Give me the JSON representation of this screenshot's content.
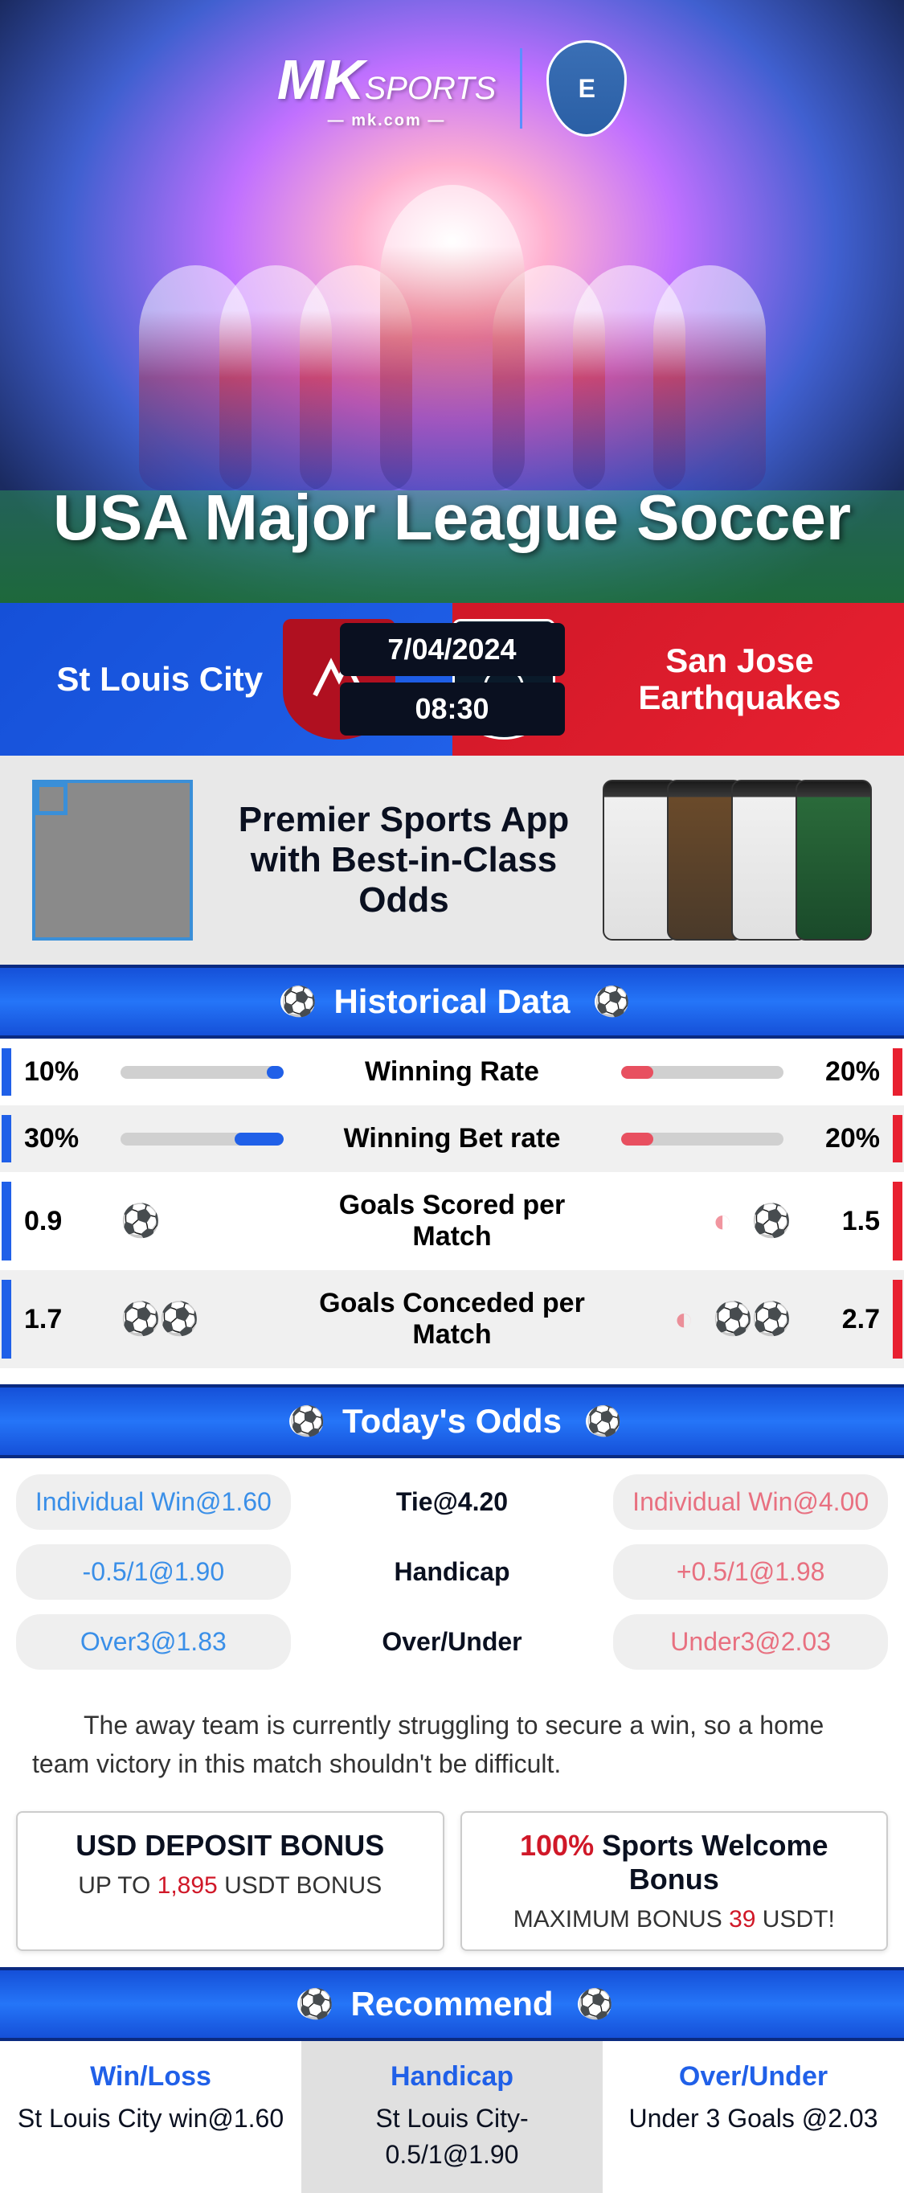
{
  "brand": {
    "logo_main": "MK",
    "logo_sub": "SPORTS",
    "logo_domain": "mk.com",
    "partner_badge": "E"
  },
  "hero": {
    "title": "USA Major League Soccer"
  },
  "match": {
    "home_team": "St Louis City",
    "away_team": "San Jose Earthquakes",
    "date": "7/04/2024",
    "time": "08:30"
  },
  "app_promo": {
    "line1": "Premier Sports App",
    "line2": "with Best-in-Class Odds"
  },
  "sections": {
    "historical": "Historical Data",
    "odds": "Today's Odds",
    "recommend": "Recommend"
  },
  "historical": {
    "rows": [
      {
        "label": "Winning Rate",
        "home_val": "10%",
        "away_val": "20%",
        "home_pct": 10,
        "away_pct": 20,
        "type": "bar"
      },
      {
        "label": "Winning Bet rate",
        "home_val": "30%",
        "away_val": "20%",
        "home_pct": 30,
        "away_pct": 20,
        "type": "bar"
      },
      {
        "label": "Goals Scored per Match",
        "home_val": "0.9",
        "away_val": "1.5",
        "home_balls": 1,
        "home_half": false,
        "away_balls": 1,
        "away_half": true,
        "type": "balls"
      },
      {
        "label": "Goals Conceded per Match",
        "home_val": "1.7",
        "away_val": "2.7",
        "home_balls": 2,
        "home_half": false,
        "away_balls": 2,
        "away_half": true,
        "type": "balls"
      }
    ]
  },
  "odds": {
    "rows": [
      {
        "home": "Individual Win@1.60",
        "center": "Tie@4.20",
        "away": "Individual Win@4.00"
      },
      {
        "home": "-0.5/1@1.90",
        "center": "Handicap",
        "away": "+0.5/1@1.98"
      },
      {
        "home": "Over3@1.83",
        "center": "Over/Under",
        "away": "Under3@2.03"
      }
    ]
  },
  "analysis": "The away team is currently struggling to secure a win, so a home team victory in this match shouldn't be difficult.",
  "bonus": {
    "card1_title": "USD DEPOSIT BONUS",
    "card1_sub_pre": "UP TO ",
    "card1_sub_highlight": "1,895",
    "card1_sub_post": " USDT BONUS",
    "card2_title_highlight": "100%",
    "card2_title_post": " Sports Welcome Bonus",
    "card2_sub_pre": "MAXIMUM BONUS ",
    "card2_sub_highlight": "39",
    "card2_sub_post": " USDT!"
  },
  "recommend": {
    "cols": [
      {
        "head": "Win/Loss",
        "body": "St Louis City win@1.60"
      },
      {
        "head": "Handicap",
        "body": "St Louis City-0.5/1@1.90"
      },
      {
        "head": "Over/Under",
        "body": "Under 3 Goals @2.03"
      }
    ]
  },
  "colors": {
    "home": "#2060e8",
    "away": "#e82030",
    "away_soft": "#e87080",
    "home_soft": "#3a8fe8"
  }
}
